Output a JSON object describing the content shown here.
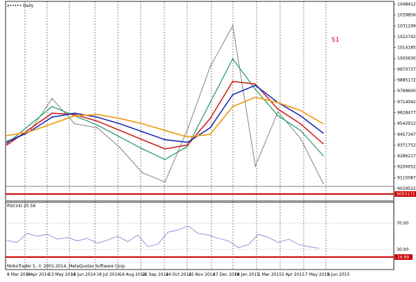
{
  "chart": {
    "title": "x••••• Daily",
    "signal_label": "S1",
    "price_level": "9003171",
    "price_levels": [
      "10484127",
      "10398565",
      "10312997",
      "10227423",
      "10141850",
      "10056302",
      "9970737",
      "9885172",
      "9799600",
      "9714042",
      "9628477",
      "9542912",
      "9457347",
      "9371752",
      "9286217",
      "9200652",
      "9115087",
      "9029522"
    ],
    "dates": [
      "8 Mar 2014",
      "9 Apr 2014",
      "13 May 2014",
      "15 Jun 2014",
      "18 Jul 2014",
      "19 Aug 2014",
      "22 Sep 2014",
      "24 Oct 2014",
      "25 Nov 2014",
      "27 Dec 2014",
      "28 Jan 2015",
      "1 Mar 2015",
      "3 Apr 2015",
      "7 May 2015",
      "8 Jun 2015"
    ],
    "colors": {
      "ma_fast": "#2e9b6b",
      "ma_mid": "#d42020",
      "ma_slow": "#1a2bb0",
      "ma_long": "#f0a020",
      "price": "#808080",
      "rsi": "#8888dd",
      "level": "#cc0000"
    }
  },
  "rsi": {
    "label": "RSI(14) 25.56",
    "levels": [
      "70.00",
      "30.00"
    ],
    "value_label": "16.89",
    "copyright": "MoboTrader 5, © 2001-2014, MetaQuotes Software Corp."
  },
  "chart_data": {
    "type": "line",
    "x": [
      "8 Mar 2014",
      "9 Apr 2014",
      "13 May 2014",
      "15 Jun 2014",
      "18 Jul 2014",
      "19 Aug 2014",
      "22 Sep 2014",
      "24 Oct 2014",
      "25 Nov 2014",
      "27 Dec 2014",
      "28 Jan 2015",
      "1 Mar 2015",
      "3 Apr 2015",
      "7 May 2015",
      "8 Jun 2015"
    ],
    "series": [
      {
        "values": [
          9430000,
          9500000,
          9750000,
          9560000,
          9530000,
          9380000,
          9190000,
          9120000,
          9520000,
          9990000,
          10300000,
          9240000,
          9650000,
          9450000,
          9110000
        ]
      },
      {
        "values": [
          9410000,
          9550000,
          9690000,
          9620000,
          9550000,
          9460000,
          9370000,
          9290000,
          9390000,
          9720000,
          10050000,
          9820000,
          9620000,
          9510000,
          9320000
        ]
      },
      {
        "values": [
          9400000,
          9520000,
          9640000,
          9630000,
          9580000,
          9510000,
          9440000,
          9370000,
          9400000,
          9600000,
          9880000,
          9860000,
          9670000,
          9560000,
          9410000
        ]
      },
      {
        "values": [
          9420000,
          9500000,
          9610000,
          9640000,
          9610000,
          9560000,
          9500000,
          9440000,
          9420000,
          9530000,
          9780000,
          9850000,
          9720000,
          9620000,
          9490000
        ]
      },
      {
        "values": [
          9470000,
          9500000,
          9560000,
          9620000,
          9630000,
          9600000,
          9560000,
          9510000,
          9460000,
          9480000,
          9690000,
          9760000,
          9720000,
          9660000,
          9560000
        ]
      }
    ],
    "ylim": [
      9029522,
      10484127
    ]
  }
}
